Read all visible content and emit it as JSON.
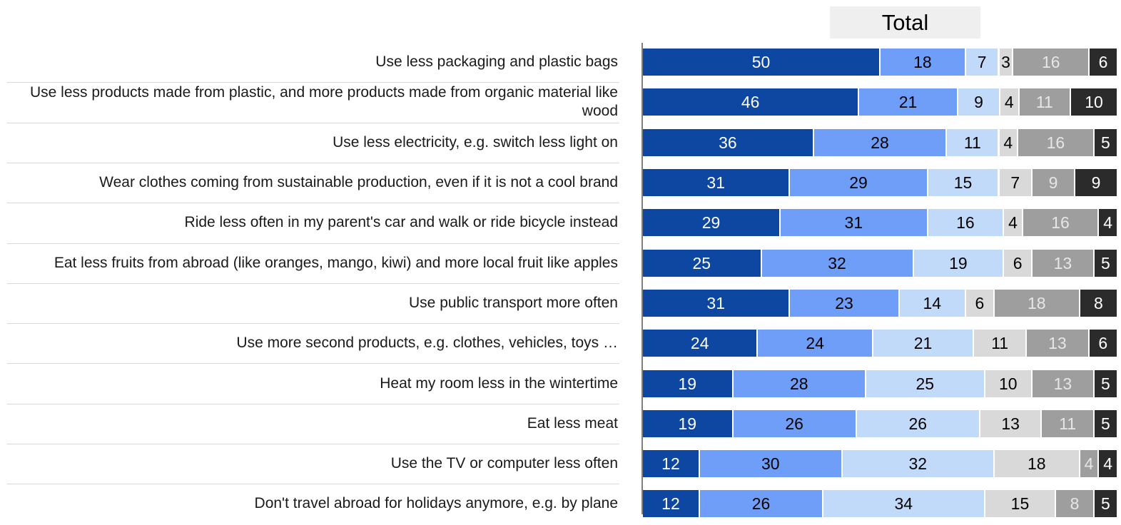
{
  "chart_data": {
    "type": "bar",
    "orientation": "horizontal-stacked-100",
    "title": "Total",
    "categories": [
      "Use less packaging and plastic bags",
      "Use less products made from plastic, and more products made from organic material like wood",
      "Use less electricity, e.g. switch less light on",
      "Wear clothes coming from sustainable production, even if it is not a cool brand",
      "Ride less often in my parent's car and walk or ride bicycle instead",
      "Eat less fruits from abroad (like oranges, mango, kiwi) and more local fruit like apples",
      "Use public transport more often",
      "Use more second products, e.g. clothes, vehicles, toys …",
      "Heat my room less in the wintertime",
      "Eat less meat",
      "Use the TV or computer less often",
      "Don't travel abroad for holidays anymore, e.g. by plane"
    ],
    "series": [
      {
        "color": "#0d47a1",
        "text_color": "#ffffff",
        "values": [
          50,
          46,
          36,
          31,
          29,
          25,
          31,
          24,
          19,
          19,
          12,
          12
        ]
      },
      {
        "color": "#6e9ef7",
        "text_color": "#000000",
        "values": [
          18,
          21,
          28,
          29,
          31,
          32,
          23,
          24,
          28,
          26,
          30,
          26
        ]
      },
      {
        "color": "#c2dafa",
        "text_color": "#000000",
        "values": [
          7,
          9,
          11,
          15,
          16,
          19,
          14,
          21,
          25,
          26,
          32,
          34
        ]
      },
      {
        "color": "#d9d9d9",
        "text_color": "#000000",
        "values": [
          3,
          4,
          4,
          7,
          4,
          6,
          6,
          11,
          10,
          13,
          18,
          15
        ]
      },
      {
        "color": "#9e9e9e",
        "text_color": "#e6e6e6",
        "values": [
          16,
          11,
          16,
          9,
          16,
          13,
          18,
          13,
          13,
          11,
          4,
          8
        ]
      },
      {
        "color": "#2b2b2b",
        "text_color": "#ffffff",
        "values": [
          6,
          10,
          5,
          9,
          4,
          5,
          8,
          6,
          5,
          5,
          4,
          5
        ]
      }
    ]
  }
}
